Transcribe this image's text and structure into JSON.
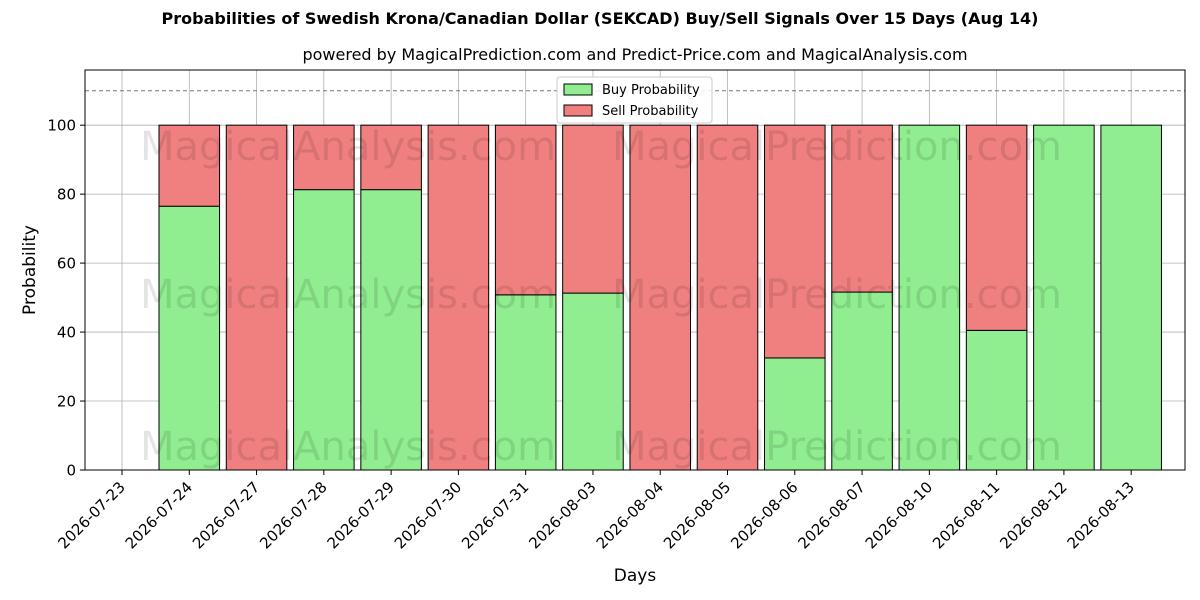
{
  "chart_data": {
    "type": "bar",
    "stacked": true,
    "title": "Probabilities of Swedish Krona/Canadian Dollar (SEKCAD) Buy/Sell Signals Over 15 Days (Aug 14)",
    "subtitle": "powered by MagicalPrediction.com and Predict-Price.com and MagicalAnalysis.com",
    "xlabel": "Days",
    "ylabel": "Probability",
    "ylim": [
      0,
      116
    ],
    "yticks": [
      0,
      20,
      40,
      60,
      80,
      100
    ],
    "reference_line": 110,
    "grid": true,
    "legend_position": "top-center",
    "x_tick_labels": [
      "2026-07-23",
      "2026-07-24",
      "2026-07-27",
      "2026-07-28",
      "2026-07-29",
      "2026-07-30",
      "2026-07-31",
      "2026-08-03",
      "2026-08-04",
      "2026-08-05",
      "2026-08-06",
      "2026-08-07",
      "2026-08-10",
      "2026-08-11",
      "2026-08-12",
      "2026-08-13"
    ],
    "categories": [
      "2026-07-24",
      "2026-07-27",
      "2026-07-28",
      "2026-07-29",
      "2026-07-30",
      "2026-07-31",
      "2026-08-03",
      "2026-08-04",
      "2026-08-05",
      "2026-08-06",
      "2026-08-07",
      "2026-08-10",
      "2026-08-11",
      "2026-08-12",
      "2026-08-13"
    ],
    "series": [
      {
        "name": "Buy Probability",
        "color": "#90ee90",
        "values": [
          76.5,
          0,
          81.3,
          81.3,
          0,
          50.8,
          51.3,
          0,
          0,
          32.5,
          51.6,
          100,
          40.5,
          100,
          100
        ]
      },
      {
        "name": "Sell Probability",
        "color": "#f08080",
        "values": [
          23.5,
          100,
          18.7,
          18.7,
          100,
          49.2,
          48.7,
          100,
          100,
          67.5,
          48.4,
          0,
          59.5,
          0,
          0
        ]
      }
    ],
    "watermarks": [
      "MagicalAnalysis.com",
      "MagicalPrediction.com"
    ]
  }
}
